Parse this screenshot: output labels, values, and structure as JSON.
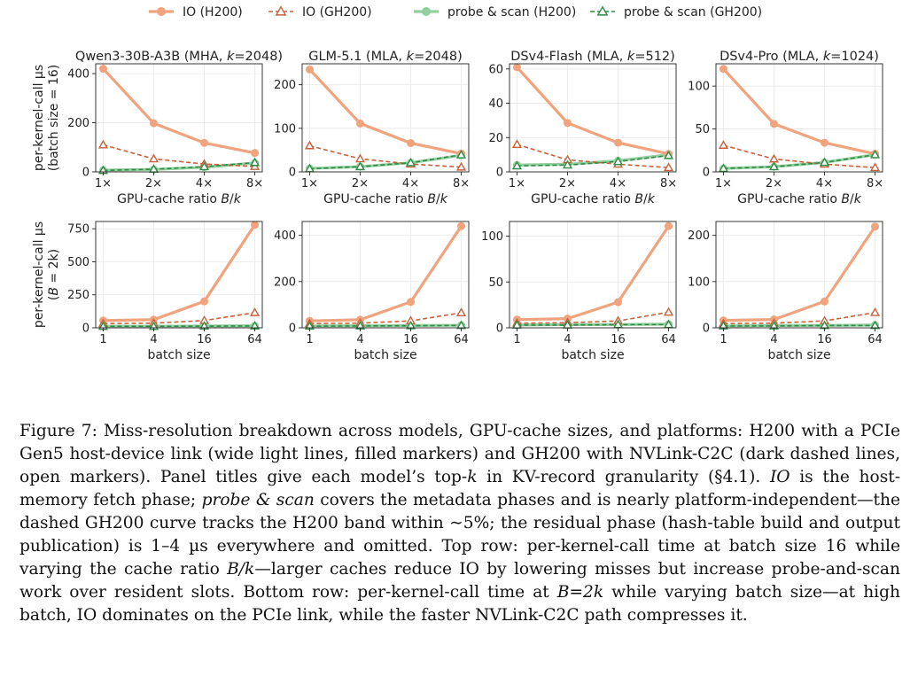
{
  "legend": [
    {
      "label": "IO (H200)",
      "color": "#F0A37C",
      "style": "solid-filled"
    },
    {
      "label": "IO (GH200)",
      "color": "#C8613A",
      "style": "dashed-open"
    },
    {
      "label": "probe & scan (H200)",
      "color": "#93CF9E",
      "style": "solid-filled"
    },
    {
      "label": "probe & scan (GH200)",
      "color": "#2E8B45",
      "style": "dashed-open"
    }
  ],
  "row_ylabels": [
    [
      "per-kernel-call µs",
      "(batch size = 16)"
    ],
    [
      "per-kernel-call µs",
      "(B = 2k)"
    ]
  ],
  "row_xlabels": [
    "GPU-cache ratio B/k",
    "batch size"
  ],
  "chart_data": [
    {
      "type": "line",
      "row": 0,
      "col": 0,
      "title": "Qwen3-30B-A3B (MHA, k=2048)",
      "xlabel": "GPU-cache ratio B/k",
      "x": [
        1,
        2,
        4,
        8
      ],
      "x_tick_labels": [
        "1×",
        "2×",
        "4×",
        "8×"
      ],
      "y_ticks": [
        0,
        200,
        400
      ],
      "ylim": [
        0,
        440
      ],
      "series": [
        {
          "name": "IO (H200)",
          "values": [
            420,
            198,
            118,
            77
          ]
        },
        {
          "name": "IO (GH200)",
          "values": [
            110,
            53,
            32,
            22
          ]
        },
        {
          "name": "probe & scan (H200)",
          "values": [
            7,
            10,
            19,
            36
          ]
        },
        {
          "name": "probe & scan (GH200)",
          "values": [
            6,
            11,
            21,
            38
          ]
        }
      ]
    },
    {
      "type": "line",
      "row": 0,
      "col": 1,
      "title": "GLM-5.1 (MLA, k=2048)",
      "xlabel": "GPU-cache ratio B/k",
      "x": [
        1,
        2,
        4,
        8
      ],
      "x_tick_labels": [
        "1×",
        "2×",
        "4×",
        "8×"
      ],
      "y_ticks": [
        0,
        100,
        200
      ],
      "ylim": [
        0,
        248
      ],
      "series": [
        {
          "name": "IO (H200)",
          "values": [
            235,
            111,
            66,
            42
          ]
        },
        {
          "name": "IO (GH200)",
          "values": [
            60,
            30,
            18,
            11
          ]
        },
        {
          "name": "probe & scan (H200)",
          "values": [
            8,
            12,
            21,
            38
          ]
        },
        {
          "name": "probe & scan (GH200)",
          "values": [
            7,
            12,
            21,
            39
          ]
        }
      ]
    },
    {
      "type": "line",
      "row": 0,
      "col": 2,
      "title": "DSv4-Flash (MLA, k=512)",
      "xlabel": "GPU-cache ratio B/k",
      "x": [
        1,
        2,
        4,
        8
      ],
      "x_tick_labels": [
        "1×",
        "2×",
        "4×",
        "8×"
      ],
      "y_ticks": [
        0,
        20,
        40,
        60
      ],
      "ylim": [
        0,
        63
      ],
      "series": [
        {
          "name": "IO (H200)",
          "values": [
            61,
            28.5,
            17,
            10.5
          ]
        },
        {
          "name": "IO (GH200)",
          "values": [
            16,
            7,
            4.5,
            2.5
          ]
        },
        {
          "name": "probe & scan (H200)",
          "values": [
            4,
            4.5,
            6.5,
            10
          ]
        },
        {
          "name": "probe & scan (GH200)",
          "values": [
            3.5,
            4,
            6,
            9.5
          ]
        }
      ]
    },
    {
      "type": "line",
      "row": 0,
      "col": 3,
      "title": "DSv4-Pro (MLA, k=1024)",
      "xlabel": "GPU-cache ratio B/k",
      "x": [
        1,
        2,
        4,
        8
      ],
      "x_tick_labels": [
        "1×",
        "2×",
        "4×",
        "8×"
      ],
      "y_ticks": [
        0,
        50,
        100
      ],
      "ylim": [
        0,
        126
      ],
      "series": [
        {
          "name": "IO (H200)",
          "values": [
            120,
            56,
            34,
            21
          ]
        },
        {
          "name": "IO (GH200)",
          "values": [
            31,
            15,
            9,
            5
          ]
        },
        {
          "name": "probe & scan (H200)",
          "values": [
            4,
            6,
            11,
            20
          ]
        },
        {
          "name": "probe & scan (GH200)",
          "values": [
            4,
            6,
            11,
            20
          ]
        }
      ]
    },
    {
      "type": "line",
      "row": 1,
      "col": 0,
      "title": "",
      "xlabel": "batch size",
      "x": [
        1,
        4,
        16,
        64
      ],
      "x_tick_labels": [
        "1",
        "4",
        "16",
        "64"
      ],
      "y_ticks": [
        0,
        250,
        500,
        750
      ],
      "ylim": [
        0,
        805
      ],
      "series": [
        {
          "name": "IO (H200)",
          "values": [
            55,
            62,
            200,
            780
          ]
        },
        {
          "name": "IO (GH200)",
          "values": [
            32,
            35,
            55,
            115
          ]
        },
        {
          "name": "probe & scan (H200)",
          "values": [
            12,
            12,
            14,
            15
          ]
        },
        {
          "name": "probe & scan (GH200)",
          "values": [
            11,
            11,
            13,
            14
          ]
        }
      ]
    },
    {
      "type": "line",
      "row": 1,
      "col": 1,
      "title": "",
      "xlabel": "batch size",
      "x": [
        1,
        4,
        16,
        64
      ],
      "x_tick_labels": [
        "1",
        "4",
        "16",
        "64"
      ],
      "y_ticks": [
        0,
        200,
        400
      ],
      "ylim": [
        0,
        460
      ],
      "series": [
        {
          "name": "IO (H200)",
          "values": [
            30,
            35,
            112,
            440
          ]
        },
        {
          "name": "IO (GH200)",
          "values": [
            18,
            20,
            30,
            65
          ]
        },
        {
          "name": "probe & scan (H200)",
          "values": [
            8,
            9,
            10,
            11
          ]
        },
        {
          "name": "probe & scan (GH200)",
          "values": [
            7,
            8,
            9,
            10
          ]
        }
      ]
    },
    {
      "type": "line",
      "row": 1,
      "col": 2,
      "title": "",
      "xlabel": "batch size",
      "x": [
        1,
        4,
        16,
        64
      ],
      "x_tick_labels": [
        "1",
        "4",
        "16",
        "64"
      ],
      "y_ticks": [
        0,
        50,
        100
      ],
      "ylim": [
        0,
        116
      ],
      "series": [
        {
          "name": "IO (H200)",
          "values": [
            9,
            10,
            28,
            111
          ]
        },
        {
          "name": "IO (GH200)",
          "values": [
            5,
            5.5,
            7.5,
            17
          ]
        },
        {
          "name": "probe & scan (H200)",
          "values": [
            3,
            3.5,
            3.5,
            4
          ]
        },
        {
          "name": "probe & scan (GH200)",
          "values": [
            3,
            3,
            3.5,
            3.5
          ]
        }
      ]
    },
    {
      "type": "line",
      "row": 1,
      "col": 3,
      "title": "",
      "xlabel": "batch size",
      "x": [
        1,
        4,
        16,
        64
      ],
      "x_tick_labels": [
        "1",
        "4",
        "16",
        "64"
      ],
      "y_ticks": [
        0,
        100,
        200
      ],
      "ylim": [
        0,
        230
      ],
      "series": [
        {
          "name": "IO (H200)",
          "values": [
            16,
            18,
            57,
            219
          ]
        },
        {
          "name": "IO (GH200)",
          "values": [
            9,
            10,
            15,
            33
          ]
        },
        {
          "name": "probe & scan (H200)",
          "values": [
            4,
            5,
            5,
            6
          ]
        },
        {
          "name": "probe & scan (GH200)",
          "values": [
            4,
            4,
            5,
            5
          ]
        }
      ]
    }
  ],
  "caption": {
    "lead": "Figure 7: Miss-resolution breakdown across models, GPU-cache sizes, and platforms: H200 with a PCIe Gen5 host-device link (wide light lines, filled markers) and GH200 with NVLink-C2C (dark dashed lines, open markers). Panel titles give each model’s top-",
    "k1": "k",
    "s1": " in KV-record granularity (§4.1). ",
    "io": "IO",
    "s2": " is the host-memory fetch phase; ",
    "ps": "probe & scan",
    "s3": " covers the metadata phases and is nearly platform-independent—the dashed GH200 curve tracks the H200 band within ∼5%; the residual phase (hash-table build and output publication) is 1–4 µs everywhere and omitted. Top row: per-kernel-call time at batch size 16 while varying the cache ratio ",
    "bk": "B/k",
    "s4": "—larger caches reduce IO by lowering misses but increase probe-and-scan work over resident slots. Bottom row: per-kernel-call time at ",
    "b2k": "B=2k",
    "s5": " while varying batch size—at high batch, IO dominates on the PCIe link, while the faster NVLink-C2C path compresses it."
  }
}
